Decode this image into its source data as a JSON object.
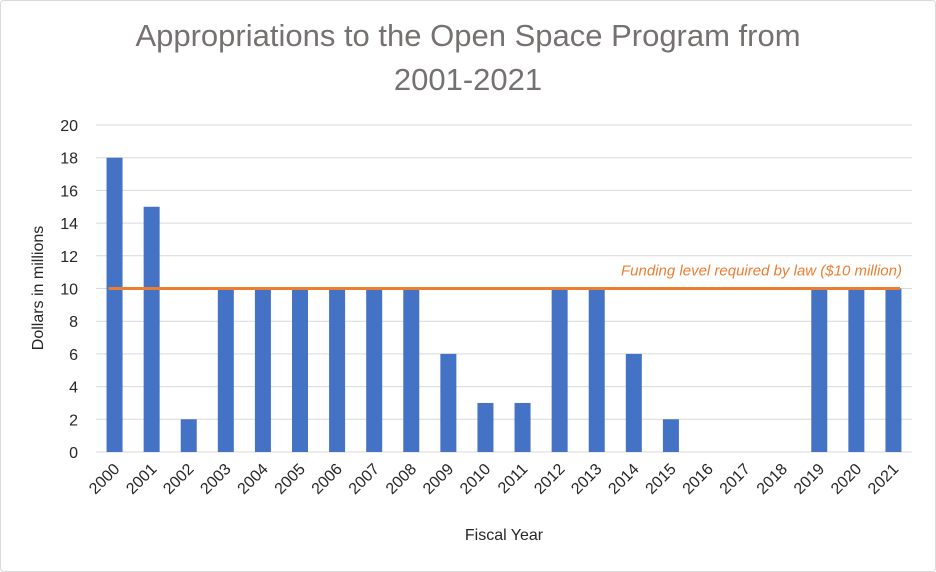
{
  "chart_data": {
    "type": "bar",
    "title_line1": "Appropriations to the Open Space Program from",
    "title_line2": "2001-2021",
    "xlabel": "Fiscal Year",
    "ylabel": "Dollars in millions",
    "categories": [
      "2000",
      "2001",
      "2002",
      "2003",
      "2004",
      "2005",
      "2006",
      "2007",
      "2008",
      "2009",
      "2010",
      "2011",
      "2012",
      "2013",
      "2014",
      "2015",
      "2016",
      "2017",
      "2018",
      "2019",
      "2020",
      "2021"
    ],
    "values": [
      18,
      15,
      2,
      10,
      10,
      10,
      10,
      10,
      10,
      6,
      3,
      3,
      10,
      10,
      6,
      2,
      0,
      0,
      0,
      10,
      10,
      10
    ],
    "ylim": [
      0,
      20
    ],
    "yticks": [
      0,
      2,
      4,
      6,
      8,
      10,
      12,
      14,
      16,
      18,
      20
    ],
    "grid": true,
    "bar_color": "#4472C4",
    "reference_line": {
      "value": 10,
      "label": "Funding level required by law ($10 million)",
      "color": "#ED7D31"
    }
  }
}
